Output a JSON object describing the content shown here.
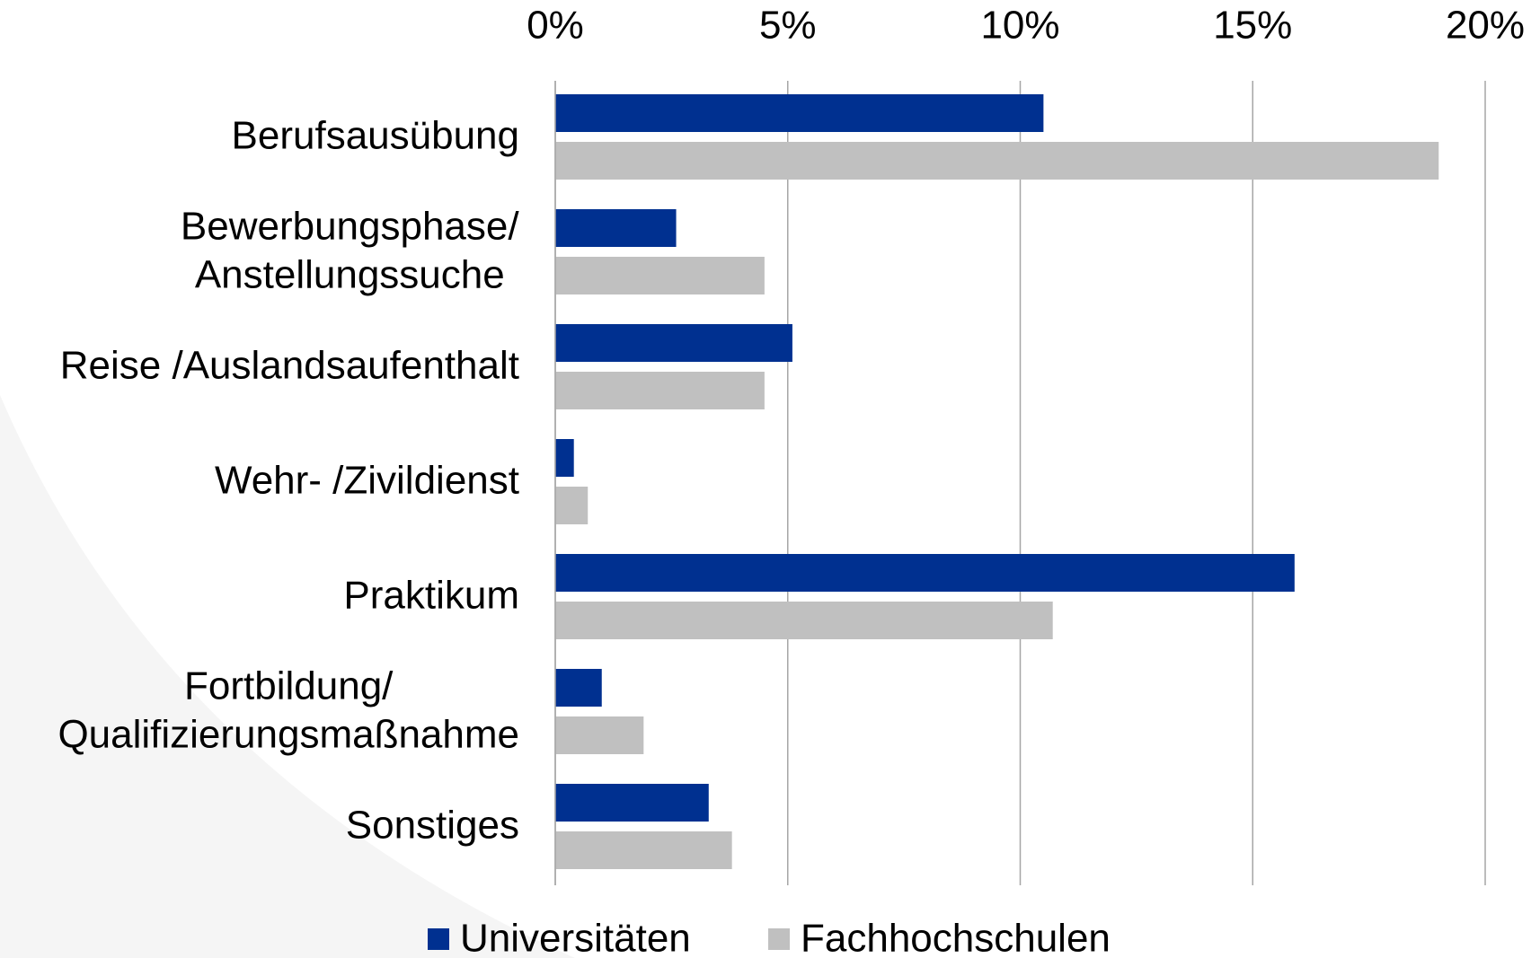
{
  "chart_data": {
    "type": "hbar",
    "categories": [
      [
        "Berufsausübung"
      ],
      [
        "Bewerbungsphase/",
        "Anstellungssuche"
      ],
      [
        "Reise /Auslandsaufenthalt"
      ],
      [
        "Wehr- /Zivildienst"
      ],
      [
        "Praktikum"
      ],
      [
        "Fortbildung/",
        "Qualifizierungsmaßnahme"
      ],
      [
        "Sonstiges"
      ]
    ],
    "series": [
      {
        "name": "Universitäten",
        "color": "#003090",
        "values": [
          10.5,
          2.6,
          5.1,
          0.4,
          15.9,
          1.0,
          3.3
        ]
      },
      {
        "name": "Fachhochschulen",
        "color": "#c0c0c0",
        "values": [
          19.0,
          4.5,
          4.5,
          0.7,
          10.7,
          1.9,
          3.8
        ]
      }
    ],
    "xlim": [
      0,
      20
    ],
    "xticks": [
      {
        "value": 0,
        "label": "0%"
      },
      {
        "value": 5,
        "label": "5%"
      },
      {
        "value": 10,
        "label": "10%"
      },
      {
        "value": 15,
        "label": "15%"
      },
      {
        "value": 20,
        "label": "20%"
      }
    ],
    "grid": true,
    "legend": "bottom"
  }
}
